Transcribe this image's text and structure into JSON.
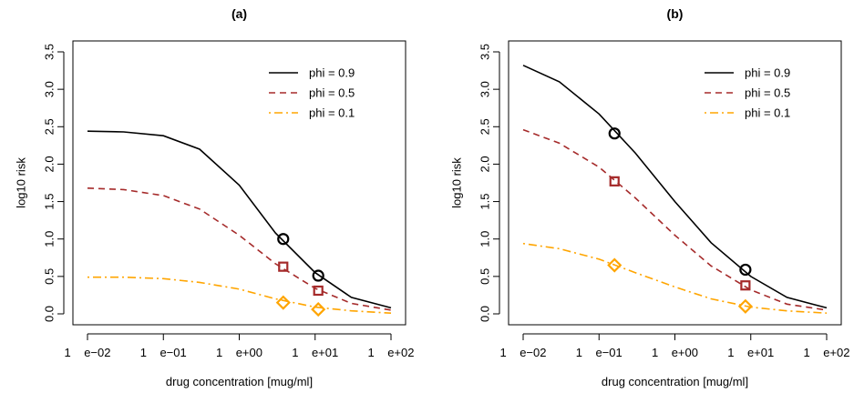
{
  "chart_data": [
    {
      "type": "line",
      "title": "(a)",
      "xlabel": "drug concentration [mug/ml]",
      "ylabel": "log10 risk",
      "x_scale": "log10",
      "xlim": [
        0.01,
        100
      ],
      "ylim": [
        0,
        3.5
      ],
      "x_ticks": [
        0.01,
        0.1,
        1,
        10,
        100
      ],
      "x_tick_labels": [
        "1    e−02",
        "1    e−01",
        "1    e+00",
        "1    e+01",
        "1    e+02"
      ],
      "y_ticks": [
        0,
        0.5,
        1,
        1.5,
        2,
        2.5,
        3,
        3.5
      ],
      "y_tick_labels": [
        "0.0",
        "0.5",
        "1.0",
        "1.5",
        "2.0",
        "2.5",
        "3.0",
        "3.5"
      ],
      "legend_position": "top-right",
      "series": [
        {
          "name": "phi = 0.9",
          "color": "#000000",
          "style": "solid",
          "marker": "circle",
          "x": [
            0.01,
            0.03,
            0.1,
            0.3,
            1,
            3,
            10,
            30,
            100
          ],
          "y": [
            2.44,
            2.43,
            2.38,
            2.2,
            1.72,
            1.08,
            0.55,
            0.22,
            0.08
          ],
          "markers": [
            {
              "x": 3.8,
              "y": 1.0
            },
            {
              "x": 11,
              "y": 0.51
            }
          ]
        },
        {
          "name": "phi = 0.5",
          "color": "#a52a2a",
          "style": "dashed",
          "marker": "square",
          "x": [
            0.01,
            0.03,
            0.1,
            0.3,
            1,
            3,
            10,
            30,
            100
          ],
          "y": [
            1.68,
            1.66,
            1.58,
            1.4,
            1.05,
            0.67,
            0.34,
            0.14,
            0.05
          ],
          "markers": [
            {
              "x": 3.8,
              "y": 0.63
            },
            {
              "x": 11,
              "y": 0.31
            }
          ]
        },
        {
          "name": "phi = 0.1",
          "color": "#ffa500",
          "style": "dotdash",
          "marker": "diamond",
          "x": [
            0.01,
            0.03,
            0.1,
            0.3,
            1,
            3,
            10,
            30,
            100
          ],
          "y": [
            0.49,
            0.49,
            0.47,
            0.42,
            0.33,
            0.2,
            0.09,
            0.04,
            0.01
          ],
          "markers": [
            {
              "x": 3.8,
              "y": 0.15
            },
            {
              "x": 11,
              "y": 0.06
            }
          ]
        }
      ]
    },
    {
      "type": "line",
      "title": "(b)",
      "xlabel": "drug concentration [mug/ml]",
      "ylabel": "log10 risk",
      "x_scale": "log10",
      "xlim": [
        0.01,
        100
      ],
      "ylim": [
        0,
        3.5
      ],
      "x_ticks": [
        0.01,
        0.1,
        1,
        10,
        100
      ],
      "x_tick_labels": [
        "1    e−02",
        "1    e−01",
        "1    e+00",
        "1    e+01",
        "1    e+02"
      ],
      "y_ticks": [
        0,
        0.5,
        1,
        1.5,
        2,
        2.5,
        3,
        3.5
      ],
      "y_tick_labels": [
        "0.0",
        "0.5",
        "1.0",
        "1.5",
        "2.0",
        "2.5",
        "3.0",
        "3.5"
      ],
      "legend_position": "top-right",
      "series": [
        {
          "name": "phi = 0.9",
          "color": "#000000",
          "style": "solid",
          "marker": "circle",
          "x": [
            0.01,
            0.03,
            0.1,
            0.3,
            1,
            3,
            10,
            30,
            100
          ],
          "y": [
            3.32,
            3.1,
            2.67,
            2.15,
            1.5,
            0.95,
            0.5,
            0.22,
            0.08
          ],
          "markers": [
            {
              "x": 0.16,
              "y": 2.41
            },
            {
              "x": 8.5,
              "y": 0.59
            }
          ]
        },
        {
          "name": "phi = 0.5",
          "color": "#a52a2a",
          "style": "dashed",
          "marker": "square",
          "x": [
            0.01,
            0.03,
            0.1,
            0.3,
            1,
            3,
            10,
            30,
            100
          ],
          "y": [
            2.46,
            2.28,
            1.96,
            1.55,
            1.05,
            0.64,
            0.32,
            0.13,
            0.05
          ],
          "markers": [
            {
              "x": 0.16,
              "y": 1.77
            },
            {
              "x": 8.5,
              "y": 0.38
            }
          ]
        },
        {
          "name": "phi = 0.1",
          "color": "#ffa500",
          "style": "dotdash",
          "marker": "diamond",
          "x": [
            0.01,
            0.03,
            0.1,
            0.3,
            1,
            3,
            10,
            30,
            100
          ],
          "y": [
            0.94,
            0.87,
            0.73,
            0.55,
            0.36,
            0.2,
            0.09,
            0.04,
            0.01
          ],
          "markers": [
            {
              "x": 0.16,
              "y": 0.65
            },
            {
              "x": 8.5,
              "y": 0.1
            }
          ]
        }
      ]
    }
  ]
}
